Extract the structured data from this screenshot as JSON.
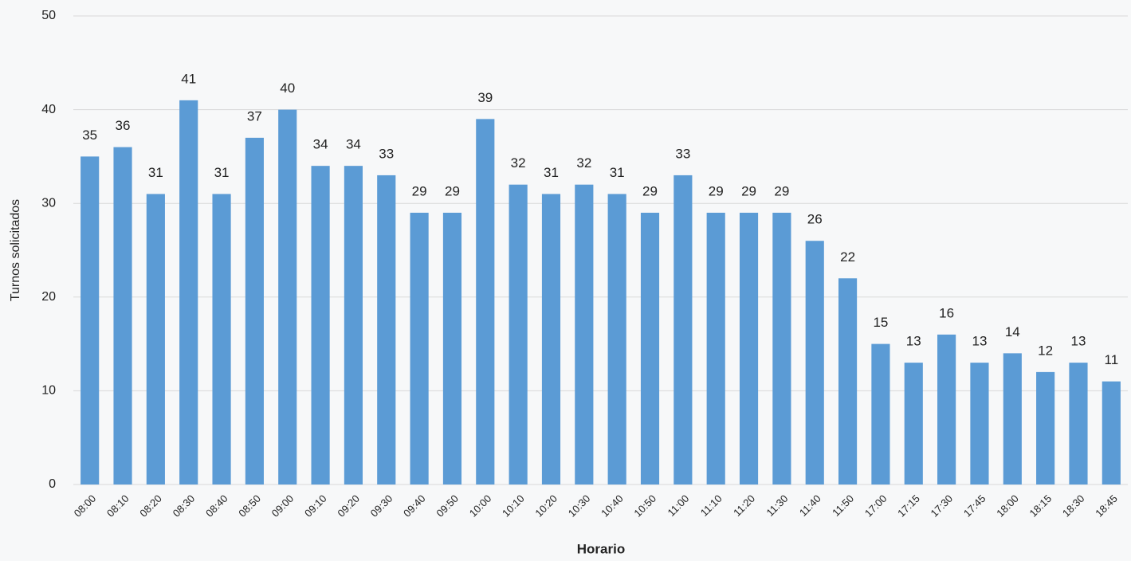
{
  "chart_data": {
    "type": "bar",
    "x_label": "Horario",
    "y_label": "Turnos solicitados",
    "categories": [
      "08:00",
      "08:10",
      "08:20",
      "08:30",
      "08:40",
      "08:50",
      "09:00",
      "09:10",
      "09:20",
      "09:30",
      "09:40",
      "09:50",
      "10:00",
      "10:10",
      "10:20",
      "10:30",
      "10:40",
      "10:50",
      "11:00",
      "11:10",
      "11:20",
      "11:30",
      "11:40",
      "11:50",
      "17:00",
      "17:15",
      "17:30",
      "17:45",
      "18:00",
      "18:15",
      "18:30",
      "18:45"
    ],
    "values": [
      35,
      36,
      31,
      41,
      31,
      37,
      40,
      34,
      34,
      33,
      29,
      29,
      39,
      32,
      31,
      32,
      31,
      29,
      33,
      29,
      29,
      29,
      26,
      22,
      15,
      13,
      16,
      13,
      14,
      12,
      13,
      11
    ],
    "color": "#5b9bd5",
    "ylim": [
      0,
      50
    ],
    "yticks": [
      0,
      10,
      20,
      30,
      40,
      50
    ],
    "grid": true,
    "data_labels": true
  }
}
